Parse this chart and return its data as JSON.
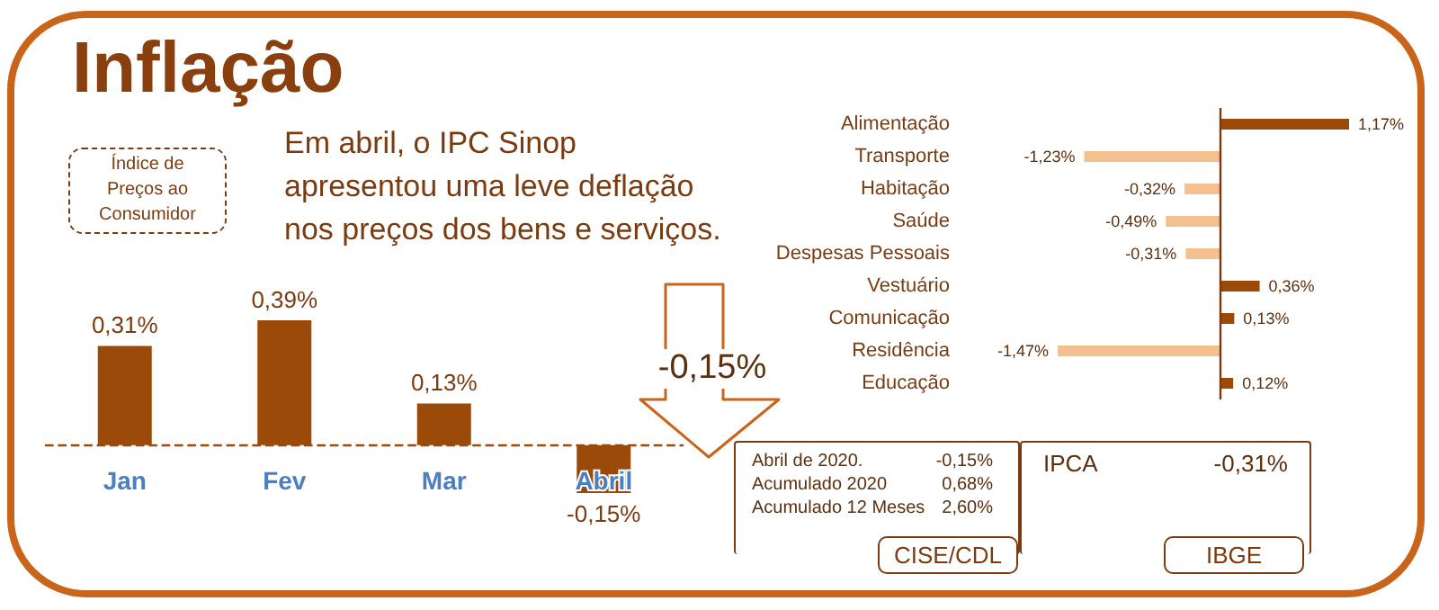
{
  "chart_data": [
    {
      "type": "bar",
      "title": "Inflação",
      "annotations": [
        "Índice de Preços ao Consumidor",
        "Em abril, o IPC Sinop apresentou uma leve deflação nos preços dos bens e serviços.",
        "-0,15%"
      ],
      "categories": [
        "Jan",
        "Fev",
        "Mar",
        "Abril"
      ],
      "values": [
        0.31,
        0.39,
        0.13,
        -0.15
      ],
      "value_labels": [
        "0,31%",
        "0,39%",
        "0,13%",
        "-0,15%"
      ],
      "color": "#9c4a0a",
      "tick_labels": "x",
      "ref_lines": [
        {
          "axis": "y",
          "value": 0,
          "color": "#9c4a0a",
          "line_style": "dashed"
        }
      ]
    },
    {
      "type": "bar",
      "orientation": "horizontal",
      "categories": [
        "Alimentação",
        "Transporte",
        "Habitação",
        "Saúde",
        "Despesas Pessoais",
        "Vestuário",
        "Comunicação",
        "Residência",
        "Educação"
      ],
      "values": [
        1.17,
        -1.23,
        -0.32,
        -0.49,
        -0.31,
        0.36,
        0.13,
        -1.47,
        0.12
      ],
      "value_labels": [
        "1,17%",
        "-1,23%",
        "-0,32%",
        "-0,49%",
        "-0,31%",
        "0,36%",
        "0,13%",
        "-1,47%",
        "0,12%"
      ],
      "colors": [
        "#9c4a0a",
        "#f5c08f",
        "#f5c08f",
        "#f5c08f",
        "#f5c08f",
        "#9c4a0a",
        "#9c4a0a",
        "#f5c08f",
        "#9c4a0a"
      ],
      "tick_labels": "y",
      "ref_lines": [
        {
          "axis": "x",
          "value": 0,
          "color": "#7a3b10",
          "line_style": "solid"
        }
      ]
    },
    {
      "type": "other",
      "annotations": [
        "Abril de 2020.",
        "-0,15%",
        "Acumulado 2020",
        "0,68%",
        "Acumulado 12 Meses",
        "2,60%",
        "CISE/CDL",
        "IPCA",
        "-0,31%",
        "IBGE"
      ]
    }
  ]
}
